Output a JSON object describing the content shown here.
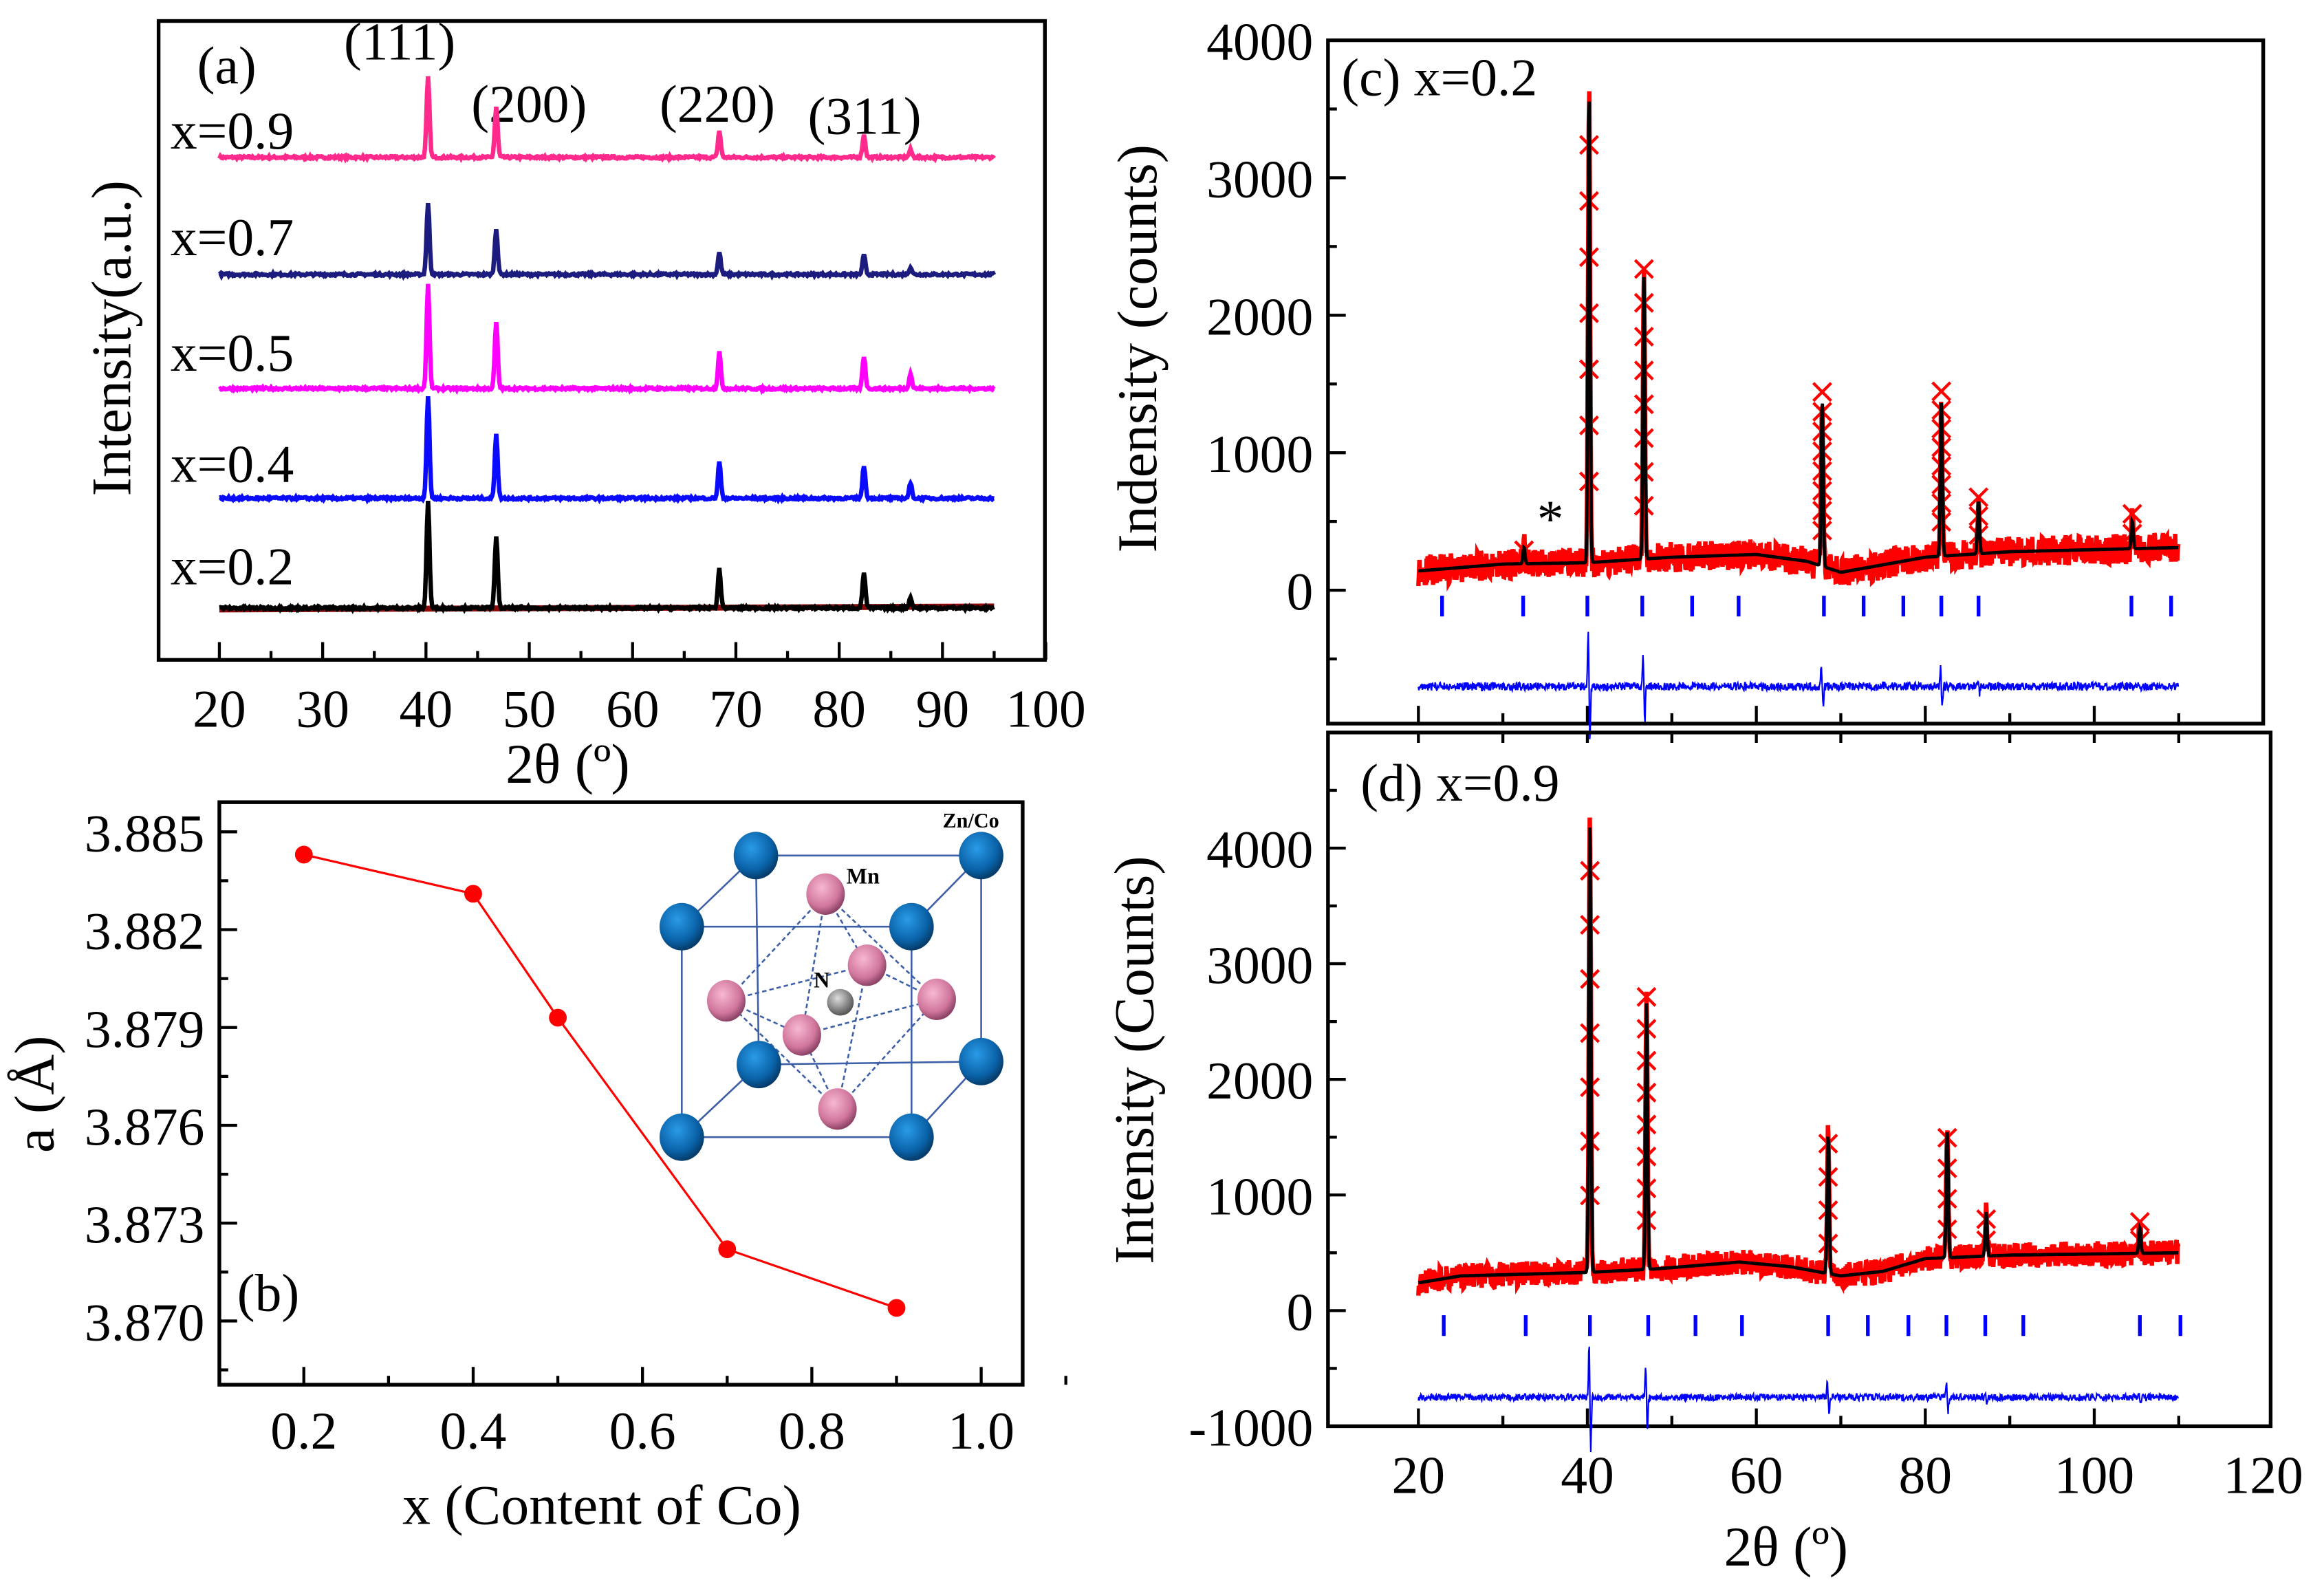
{
  "chart_data": [
    {
      "id": "a",
      "type": "line",
      "panel_label": "(a)",
      "xlabel": "2θ (º)",
      "ylabel": "Intensity(a.u.)",
      "xlim": [
        14,
        106
      ],
      "xticks": [
        20,
        30,
        40,
        50,
        60,
        70,
        80,
        90,
        100
      ],
      "peak_positions": [
        40.2,
        46.8,
        68.4,
        82.4,
        86.9
      ],
      "peak_labels": [
        "(111)",
        "(200)",
        "(220)",
        "(311)"
      ],
      "series": [
        {
          "name": "x=0.9",
          "color": "#ff2a8c",
          "peak_intensities": [
            54,
            34,
            18,
            15,
            5
          ]
        },
        {
          "name": "x=0.7",
          "color": "#1c1c7e",
          "peak_intensities": [
            48,
            31,
            15,
            13,
            5
          ]
        },
        {
          "name": "x=0.5",
          "color": "#ff00ff",
          "peak_intensities": [
            70,
            45,
            25,
            22,
            10
          ]
        },
        {
          "name": "x=0.4",
          "color": "#0a0aff",
          "peak_intensities": [
            69,
            44,
            25,
            22,
            10
          ]
        },
        {
          "name": "x=0.2",
          "color": "#000000",
          "baseline_color": "#8b0a0a",
          "peak_intensities": [
            72,
            49,
            27,
            24,
            7
          ]
        }
      ]
    },
    {
      "id": "b",
      "type": "line",
      "panel_label": "(b)",
      "xlabel": "x (Content of Co)",
      "ylabel": "a (Å)",
      "xlim": [
        0.1,
        1.05
      ],
      "ylim": [
        3.868,
        3.886
      ],
      "xticks": [
        "0.2",
        "0.4",
        "0.6",
        "0.8",
        "1.0"
      ],
      "yticks": [
        "3.870",
        "3.873",
        "3.876",
        "3.879",
        "3.882",
        "3.885"
      ],
      "color": "#ff0000",
      "x": [
        0.2,
        0.4,
        0.5,
        0.7,
        0.9
      ],
      "y": [
        3.8843,
        3.8831,
        3.8793,
        3.8722,
        3.8704
      ],
      "inset": {
        "labels": [
          "Zn/Co",
          "Mn",
          "N"
        ]
      }
    },
    {
      "id": "c",
      "type": "line",
      "panel_label": "(c) x=0.2",
      "ylabel": "Indensity (counts)",
      "xlim": [
        10,
        120
      ],
      "ylim": [
        -970,
        4000
      ],
      "yticks": [
        "0",
        "1000",
        "2000",
        "3000",
        "4000"
      ],
      "annotation": "*",
      "background": [
        [
          20,
          140
        ],
        [
          30,
          190
        ],
        [
          40,
          200
        ],
        [
          50,
          240
        ],
        [
          60,
          260
        ],
        [
          66,
          210
        ],
        [
          70,
          130
        ],
        [
          80,
          240
        ],
        [
          90,
          280
        ],
        [
          110,
          310
        ]
      ],
      "peaks": [
        [
          32.5,
          120
        ],
        [
          40.2,
          3400
        ],
        [
          46.7,
          2050
        ],
        [
          67.8,
          1200
        ],
        [
          81.9,
          1130
        ],
        [
          86.3,
          380
        ],
        [
          104.5,
          200
        ]
      ],
      "bragg_positions": [
        22.8,
        32.4,
        40.0,
        46.5,
        52.4,
        57.9,
        68.0,
        72.7,
        77.4,
        81.9,
        86.3,
        104.4,
        109.1
      ],
      "difference_offset": -700,
      "colors": {
        "observed": "#ff0000",
        "calculated": "#000000",
        "bragg": "#0000ff",
        "difference": "#0000ff"
      }
    },
    {
      "id": "d",
      "type": "line",
      "panel_label": "(d) x=0.9",
      "xlabel": "2θ (º)",
      "ylabel": "Intensity (Counts)",
      "xlim": [
        10,
        120
      ],
      "ylim": [
        -1000,
        5000
      ],
      "xticks": [
        "20",
        "40",
        "60",
        "80",
        "100",
        "120"
      ],
      "yticks": [
        "-1000",
        "0",
        "1000",
        "2000",
        "3000",
        "4000"
      ],
      "background": [
        [
          20,
          240
        ],
        [
          25,
          300
        ],
        [
          40,
          330
        ],
        [
          48,
          360
        ],
        [
          58,
          420
        ],
        [
          64,
          380
        ],
        [
          70,
          300
        ],
        [
          75,
          340
        ],
        [
          80,
          450
        ],
        [
          90,
          480
        ],
        [
          110,
          500
        ]
      ],
      "peaks": [
        [
          40.3,
          3900
        ],
        [
          47.0,
          2300
        ],
        [
          68.5,
          1200
        ],
        [
          82.6,
          1100
        ],
        [
          87.2,
          380
        ],
        [
          105.4,
          220
        ]
      ],
      "bragg_positions": [
        23.0,
        32.7,
        40.3,
        47.2,
        52.8,
        58.3,
        68.5,
        73.2,
        78.0,
        82.5,
        87.1,
        91.6,
        105.4,
        110.2
      ],
      "difference_offset": -750,
      "colors": {
        "observed": "#ff0000",
        "calculated": "#000000",
        "bragg": "#0000ff",
        "difference": "#0000ff"
      }
    }
  ]
}
